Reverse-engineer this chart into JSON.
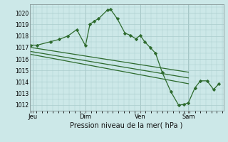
{
  "bg_color": "#cce8e8",
  "grid_color": "#aacccc",
  "line_color": "#2d6a2d",
  "marker_color": "#2d6a2d",
  "xlabel": "Pression niveau de la mer( hPa )",
  "ylim": [
    1011.5,
    1020.75
  ],
  "yticks": [
    1012,
    1013,
    1014,
    1015,
    1016,
    1017,
    1018,
    1019,
    1020
  ],
  "xtick_labels": [
    "Jeu",
    "Dim",
    "Ven",
    "Sam"
  ],
  "xtick_positions": [
    0.08,
    2.5,
    5.0,
    7.2
  ],
  "xlim": [
    -0.05,
    8.8
  ],
  "vline_positions": [
    0.08,
    2.5,
    5.0,
    7.2
  ],
  "series1_x": [
    0.0,
    0.3,
    0.9,
    1.3,
    1.7,
    2.1,
    2.5,
    2.7,
    2.9,
    3.1,
    3.5,
    3.65,
    3.95,
    4.3,
    4.55,
    4.8,
    5.0,
    5.2,
    5.45,
    5.7,
    6.0,
    6.4,
    6.75,
    7.0,
    7.2,
    7.5,
    7.75,
    8.05,
    8.35,
    8.6
  ],
  "series1_y": [
    1017.2,
    1017.2,
    1017.5,
    1017.7,
    1018.0,
    1018.55,
    1017.15,
    1019.0,
    1019.3,
    1019.5,
    1020.25,
    1020.3,
    1019.5,
    1018.25,
    1018.05,
    1017.75,
    1018.05,
    1017.5,
    1017.0,
    1016.5,
    1014.85,
    1013.15,
    1012.0,
    1012.05,
    1012.2,
    1013.5,
    1014.1,
    1014.1,
    1013.35,
    1013.85
  ],
  "series2_x": [
    0.0,
    7.2
  ],
  "series2_y": [
    1017.0,
    1014.85
  ],
  "series3_x": [
    0.0,
    7.2
  ],
  "series3_y": [
    1016.65,
    1014.35
  ],
  "series4_x": [
    0.0,
    7.2
  ],
  "series4_y": [
    1016.4,
    1013.85
  ],
  "lw": 0.9,
  "ms": 2.2
}
